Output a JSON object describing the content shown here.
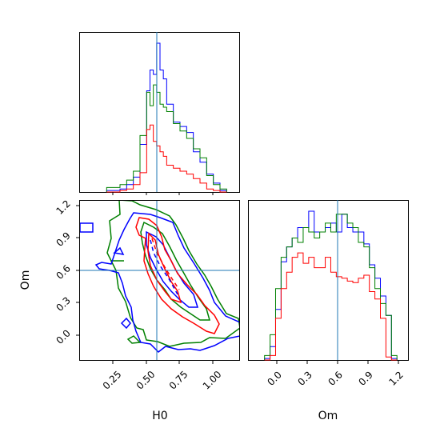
{
  "chart_data": {
    "type": "corner",
    "parameters": [
      "H0",
      "Om"
    ],
    "truth": {
      "H0": 0.58,
      "Om": 0.6
    },
    "colors": {
      "series_1": "#0000ff",
      "series_2": "#008000",
      "series_3": "#ff0000",
      "truth": "#1f77b4"
    },
    "panels": {
      "H0_hist": {
        "type": "histogram",
        "xlim": [
          0.0,
          1.2
        ],
        "ymax": 1.0,
        "bins": [
          0.2,
          0.25,
          0.3,
          0.35,
          0.4,
          0.45,
          0.5,
          0.525,
          0.55,
          0.575,
          0.6,
          0.625,
          0.65,
          0.7,
          0.75,
          0.8,
          0.85,
          0.9,
          0.95,
          1.0,
          1.05,
          1.1
        ],
        "series": [
          {
            "values": [
              0.01,
              0.01,
              0.02,
              0.05,
              0.1,
              0.32,
              0.68,
              0.82,
              0.79,
              1.0,
              0.82,
              0.76,
              0.59,
              0.47,
              0.44,
              0.4,
              0.27,
              0.2,
              0.12,
              0.06,
              0.01
            ]
          },
          {
            "values": [
              0.03,
              0.03,
              0.05,
              0.08,
              0.14,
              0.38,
              0.67,
              0.58,
              0.72,
              0.67,
              0.59,
              0.57,
              0.54,
              0.46,
              0.41,
              0.36,
              0.29,
              0.23,
              0.11,
              0.05,
              0.02
            ]
          },
          {
            "values": [
              0.0,
              0.0,
              0.01,
              0.02,
              0.05,
              0.13,
              0.42,
              0.45,
              0.34,
              0.31,
              0.27,
              0.24,
              0.18,
              0.16,
              0.14,
              0.12,
              0.09,
              0.06,
              0.02,
              0.01,
              0.0
            ]
          }
        ]
      },
      "Om_hist": {
        "type": "histogram",
        "xlim": [
          -0.2,
          1.25
        ],
        "ymax": 1.0,
        "bins": [
          -0.05,
          0.0,
          0.05,
          0.1,
          0.15,
          0.2,
          0.25,
          0.3,
          0.35,
          0.4,
          0.45,
          0.5,
          0.55,
          0.6,
          0.65,
          0.7,
          0.75,
          0.8,
          0.85,
          0.9,
          0.95,
          1.0,
          1.05,
          1.1,
          1.15
        ],
        "series": [
          {
            "values": [
              0.01,
              0.09,
              0.34,
              0.66,
              0.76,
              0.82,
              0.89,
              0.89,
              1.0,
              0.86,
              0.86,
              0.89,
              0.92,
              0.86,
              0.98,
              0.89,
              0.86,
              0.86,
              0.78,
              0.64,
              0.55,
              0.43,
              0.3,
              0.01
            ]
          },
          {
            "values": [
              0.03,
              0.17,
              0.48,
              0.69,
              0.76,
              0.82,
              0.79,
              0.89,
              0.86,
              0.82,
              0.86,
              0.92,
              0.86,
              0.98,
              0.98,
              0.92,
              0.89,
              0.79,
              0.76,
              0.62,
              0.48,
              0.38,
              0.3,
              0.03
            ]
          },
          {
            "values": [
              0.0,
              0.03,
              0.28,
              0.48,
              0.59,
              0.69,
              0.72,
              0.65,
              0.69,
              0.62,
              0.62,
              0.69,
              0.59,
              0.56,
              0.55,
              0.53,
              0.52,
              0.55,
              0.57,
              0.46,
              0.41,
              0.28,
              0.02,
              0.0
            ]
          }
        ]
      },
      "scatter": {
        "xlim": [
          0.0,
          1.2
        ],
        "ylim": [
          -0.2,
          1.25
        ],
        "xticks": [
          "0.25",
          "0.50",
          "0.75",
          "1.00"
        ],
        "yticks": [
          "0.0",
          "0.3",
          "0.6",
          "0.9",
          "1.2"
        ],
        "om_xticks": [
          "0.0",
          "0.3",
          "0.6",
          "0.9",
          "1.2"
        ]
      }
    }
  }
}
